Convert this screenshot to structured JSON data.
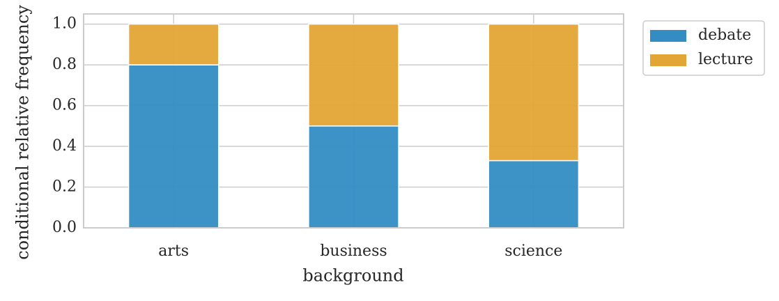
{
  "chart_data": {
    "type": "stacked_bar",
    "x_label": "background",
    "y_label": "conditional relative frequency",
    "categories": [
      "arts",
      "business",
      "science"
    ],
    "series": [
      {
        "name": "debate",
        "color": "#338dc3",
        "values": [
          0.8,
          0.5,
          0.33
        ]
      },
      {
        "name": "lecture",
        "color": "#e3a535",
        "values": [
          0.2,
          0.5,
          0.67
        ]
      }
    ],
    "ylim": [
      0,
      1.05
    ],
    "yticks": [
      {
        "value": 0,
        "label": "0.0"
      },
      0.2,
      0.4,
      0.6,
      0.8,
      {
        "value": 1,
        "label": "1.0"
      }
    ],
    "grid": true,
    "legend": "outside-upper-right"
  }
}
